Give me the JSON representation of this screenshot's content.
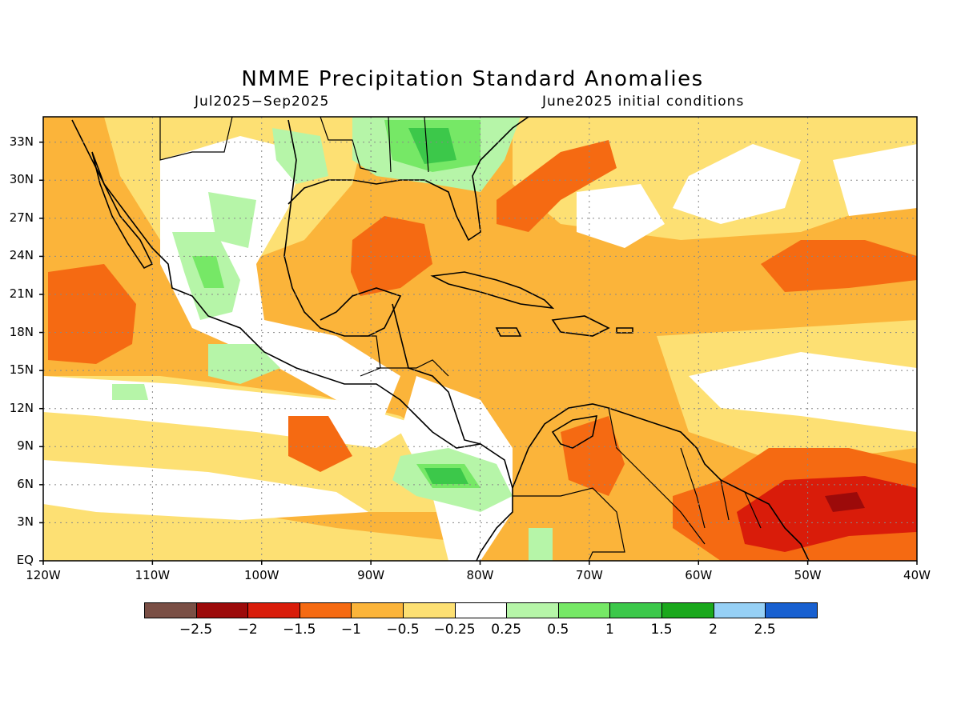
{
  "title": "NMME Precipitation Standard Anomalies",
  "subtitle_left": "Jul2025−Sep2025",
  "subtitle_right": "June2025 initial conditions",
  "map": {
    "lon_range": [
      -120,
      -40
    ],
    "lat_range": [
      0,
      35
    ],
    "lat_labels": [
      "33N",
      "30N",
      "27N",
      "24N",
      "21N",
      "18N",
      "15N",
      "12N",
      "9N",
      "6N",
      "3N",
      "EQ"
    ],
    "lat_values": [
      33,
      30,
      27,
      24,
      21,
      18,
      15,
      12,
      9,
      6,
      3,
      0
    ],
    "lon_labels": [
      "120W",
      "110W",
      "100W",
      "90W",
      "80W",
      "70W",
      "60W",
      "50W",
      "40W"
    ],
    "lon_values": [
      -120,
      -110,
      -100,
      -90,
      -80,
      -70,
      -60,
      -50,
      -40
    ],
    "grid": true
  },
  "colorbar": {
    "colors": [
      "#7a4f45",
      "#9c0a0a",
      "#d91c0a",
      "#f56a12",
      "#fbb43a",
      "#fde073",
      "#ffffff",
      "#b6f5a8",
      "#76e866",
      "#3cc84a",
      "#1aa81c",
      "#96d0f5",
      "#1860d0"
    ],
    "labels": [
      "−2.5",
      "−2",
      "−1.5",
      "−1",
      "−0.5",
      "−0.25",
      "0.25",
      "0.5",
      "1",
      "1.5",
      "2",
      "2.5"
    ]
  },
  "colors": {
    "dry_light": "#fde073",
    "dry": "#fbb43a",
    "dry_strong": "#f56a12",
    "dry_very_strong": "#d91c0a",
    "dry_extreme": "#9c0a0a",
    "wet_light": "#b6f5a8",
    "wet": "#76e866",
    "wet_strong": "#3cc84a"
  }
}
